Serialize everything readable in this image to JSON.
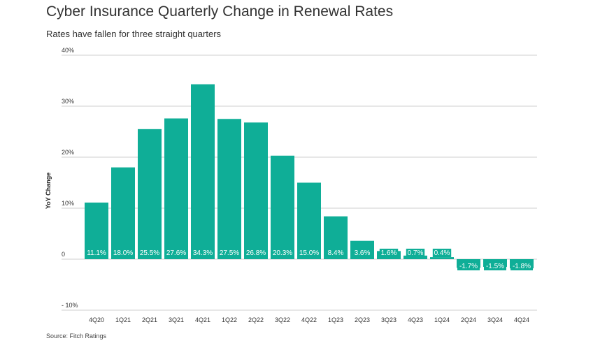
{
  "title": "Cyber Insurance Quarterly Change in Renewal Rates",
  "subtitle": "Rates have fallen for three straight quarters",
  "source": "Source: Fitch Ratings",
  "chart_data": {
    "type": "bar",
    "title": "Cyber Insurance Quarterly Change in Renewal Rates",
    "subtitle": "Rates have fallen for three straight quarters",
    "xlabel": "",
    "ylabel": "YoY Change",
    "ylim": [
      -10,
      40
    ],
    "grid": true,
    "bar_color": "#0fae97",
    "categories": [
      "4Q20",
      "1Q21",
      "2Q21",
      "3Q21",
      "4Q21",
      "1Q22",
      "2Q22",
      "3Q22",
      "4Q22",
      "1Q23",
      "2Q23",
      "3Q23",
      "4Q23",
      "1Q24",
      "2Q24",
      "3Q24",
      "4Q24"
    ],
    "values": [
      11.1,
      18.0,
      25.5,
      27.6,
      34.3,
      27.5,
      26.8,
      20.3,
      15.0,
      8.4,
      3.6,
      1.6,
      0.7,
      0.4,
      -1.7,
      -1.5,
      -1.8
    ],
    "data_labels": [
      "11.1%",
      "18.0%",
      "25.5%",
      "27.6%",
      "34.3%",
      "27.5%",
      "26.8%",
      "20.3%",
      "15.0%",
      "8.4%",
      "3.6%",
      "1.6%",
      "0.7%",
      "0.4%",
      "-1.7%",
      "-1.5%",
      "-1.8%"
    ],
    "y_ticks": [
      {
        "value": 40,
        "label": "40%"
      },
      {
        "value": 30,
        "label": "30%"
      },
      {
        "value": 20,
        "label": "20%"
      },
      {
        "value": 10,
        "label": "10%"
      },
      {
        "value": 0,
        "label": "0"
      },
      {
        "value": -10,
        "label": "- 10%"
      }
    ],
    "source": "Source: Fitch Ratings"
  }
}
